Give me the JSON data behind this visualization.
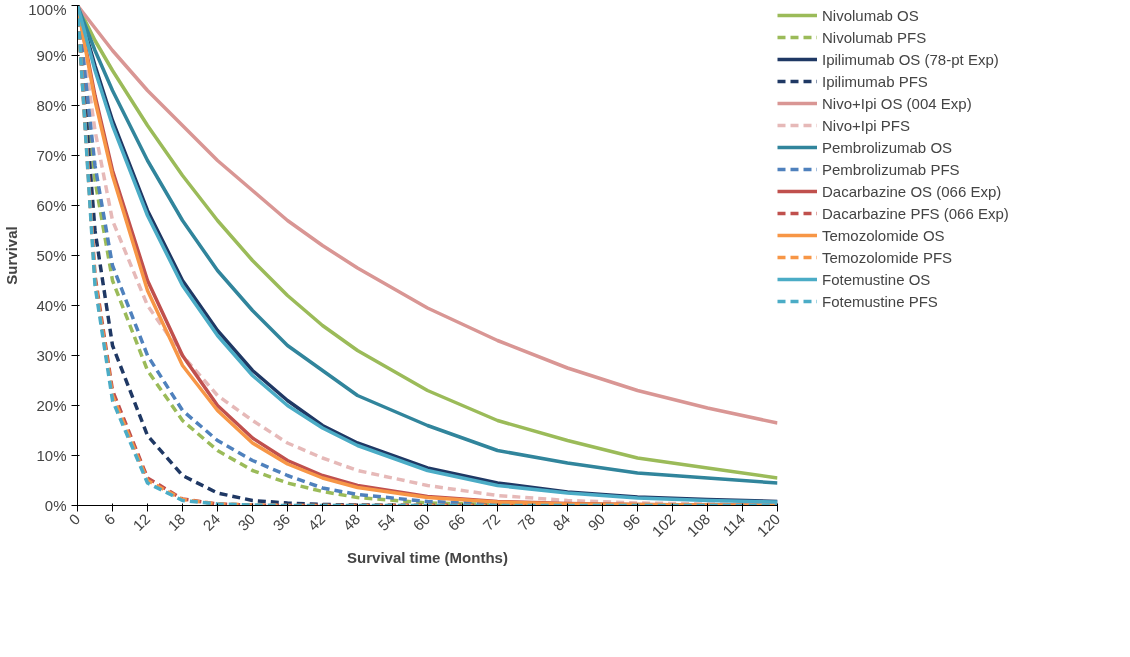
{
  "chart_data": {
    "type": "line",
    "xlabel": "Survival time (Months)",
    "ylabel": "Survival",
    "x": [
      0,
      3,
      6,
      12,
      18,
      24,
      30,
      36,
      42,
      48,
      60,
      72,
      84,
      96,
      108,
      120
    ],
    "xlim": [
      0,
      120
    ],
    "xticks": [
      0,
      6,
      12,
      18,
      24,
      30,
      36,
      42,
      48,
      54,
      60,
      66,
      72,
      78,
      84,
      90,
      96,
      102,
      108,
      114,
      120
    ],
    "ylim": [
      0,
      100
    ],
    "yticks": [
      {
        "value": 0,
        "label": "0%"
      },
      {
        "value": 10,
        "label": "10%"
      },
      {
        "value": 20,
        "label": "20%"
      },
      {
        "value": 30,
        "label": "30%"
      },
      {
        "value": 40,
        "label": "40%"
      },
      {
        "value": 50,
        "label": "50%"
      },
      {
        "value": 60,
        "label": "60%"
      },
      {
        "value": 70,
        "label": "70%"
      },
      {
        "value": 80,
        "label": "80%"
      },
      {
        "value": 90,
        "label": "90%"
      },
      {
        "value": 100,
        "label": "100%"
      }
    ],
    "grid": false,
    "legend": "right",
    "marker": "none",
    "series": [
      {
        "name": "Nivolumab OS",
        "color": "#9bbb59",
        "line_style": "solid",
        "values": [
          100,
          93,
          87,
          76,
          66,
          57,
          49,
          42,
          36,
          31,
          23,
          17,
          13,
          9.5,
          7.5,
          5.5
        ]
      },
      {
        "name": "Nivolumab PFS",
        "color": "#9bbb59",
        "line_style": "dashed",
        "values": [
          100,
          65,
          45,
          27,
          17,
          11,
          7,
          4.5,
          2.8,
          1.6,
          0.5,
          0.2,
          0.1,
          0,
          0,
          0
        ]
      },
      {
        "name": "Ipilimumab OS (78-pt Exp)",
        "color": "#1f3864",
        "line_style": "solid",
        "values": [
          100,
          88,
          77,
          59,
          45,
          35,
          27,
          21,
          16,
          12.5,
          7.5,
          4.5,
          2.7,
          1.7,
          1.2,
          0.8
        ]
      },
      {
        "name": "Ipilimumab PFS",
        "color": "#1f3864",
        "line_style": "dashed",
        "values": [
          100,
          55,
          32,
          14,
          6,
          2.5,
          1,
          0.5,
          0.2,
          0.1,
          0,
          0,
          0,
          0,
          0,
          0
        ]
      },
      {
        "name": "Nivo+Ipi OS (004 Exp)",
        "color": "#d99694",
        "line_style": "solid",
        "values": [
          100,
          95.5,
          91,
          83,
          76,
          69,
          63,
          57,
          52,
          47.5,
          39.5,
          33,
          27.5,
          23,
          19.5,
          16.5
        ]
      },
      {
        "name": "Nivo+Ipi PFS",
        "color": "#e6b9b8",
        "line_style": "dashed",
        "values": [
          100,
          75,
          57,
          40,
          30,
          22,
          17,
          12.5,
          9.5,
          7,
          4,
          2,
          1,
          0.5,
          0.3,
          0.2
        ]
      },
      {
        "name": "Pembrolizumab OS",
        "color": "#31859c",
        "line_style": "solid",
        "values": [
          100,
          91,
          83,
          69,
          57,
          47,
          39,
          32,
          27,
          22,
          16,
          11,
          8.5,
          6.5,
          5.5,
          4.5
        ]
      },
      {
        "name": "Pembrolizumab PFS",
        "color": "#4f81bd",
        "line_style": "dashed",
        "values": [
          100,
          68,
          48,
          30,
          19,
          13,
          9,
          6,
          3.5,
          2.2,
          0.8,
          0.3,
          0.1,
          0,
          0,
          0
        ]
      },
      {
        "name": "Dacarbazine OS (066 Exp)",
        "color": "#c0504d",
        "line_style": "solid",
        "values": [
          100,
          82,
          67,
          45,
          30,
          20,
          13.5,
          9,
          6,
          4,
          1.8,
          0.8,
          0.4,
          0.2,
          0.1,
          0
        ]
      },
      {
        "name": "Dacarbazine PFS (066 Exp)",
        "color": "#c0504d",
        "line_style": "dashed",
        "values": [
          100,
          46,
          23,
          5.5,
          1.3,
          0.3,
          0.1,
          0,
          0,
          0,
          0,
          0,
          0,
          0,
          0,
          0
        ]
      },
      {
        "name": "Temozolomide OS",
        "color": "#f79646",
        "line_style": "solid",
        "values": [
          100,
          81,
          66,
          43,
          28,
          19,
          12.5,
          8.3,
          5.5,
          3.6,
          1.6,
          0.7,
          0.3,
          0.2,
          0.1,
          0
        ]
      },
      {
        "name": "Temozolomide PFS",
        "color": "#f79646",
        "line_style": "dashed",
        "values": [
          100,
          45,
          22,
          5,
          1.2,
          0.3,
          0.1,
          0,
          0,
          0,
          0,
          0,
          0,
          0,
          0,
          0
        ]
      },
      {
        "name": "Fotemustine OS",
        "color": "#4bacc6",
        "line_style": "solid",
        "values": [
          100,
          87,
          76,
          58,
          44,
          34,
          26,
          20,
          15.5,
          12,
          7,
          4,
          2.5,
          1.5,
          1,
          0.7
        ]
      },
      {
        "name": "Fotemustine PFS",
        "color": "#4bacc6",
        "line_style": "dashed",
        "values": [
          100,
          44,
          21,
          4.5,
          1,
          0.3,
          0.1,
          0,
          0,
          0,
          0,
          0,
          0,
          0,
          0,
          0
        ]
      }
    ]
  }
}
